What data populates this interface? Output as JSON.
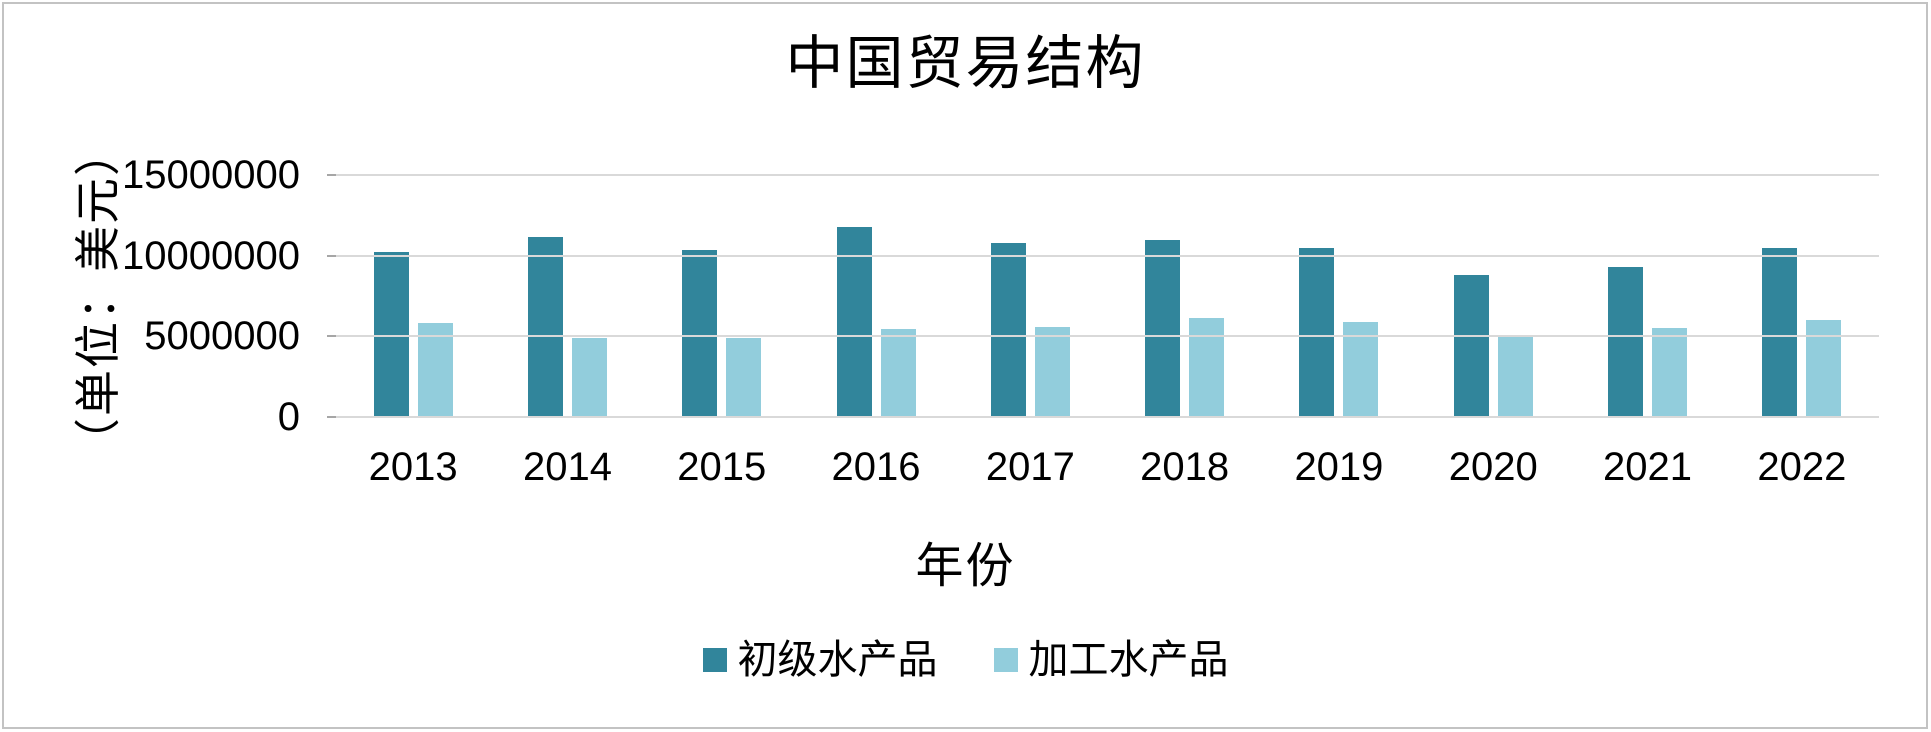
{
  "chart_data": {
    "type": "bar",
    "title": "中国贸易结构",
    "xlabel": "年份",
    "ylabel": "（单位：美元）",
    "categories": [
      "2013",
      "2014",
      "2015",
      "2016",
      "2017",
      "2018",
      "2019",
      "2020",
      "2021",
      "2022"
    ],
    "series": [
      {
        "name": "初级水产品",
        "color": "#31859B",
        "values": [
          10200000,
          11150000,
          10350000,
          11750000,
          10800000,
          11000000,
          10450000,
          8800000,
          9300000,
          10500000
        ]
      },
      {
        "name": "加工水产品",
        "color": "#92CDDC",
        "values": [
          5800000,
          4900000,
          4900000,
          5450000,
          5550000,
          6150000,
          5900000,
          5050000,
          5500000,
          6000000
        ]
      }
    ],
    "ylim": [
      0,
      15000000
    ],
    "yticks": [
      0,
      5000000,
      10000000,
      15000000
    ],
    "ytick_labels": [
      "0",
      "5000000",
      "10000000",
      "15000000"
    ],
    "grid": true,
    "legend_position": "bottom",
    "colors": {
      "gridline": "#D9D9D9",
      "tick": "#A6A6A6",
      "frame": "#C3C3C3",
      "text": "#000000"
    }
  }
}
